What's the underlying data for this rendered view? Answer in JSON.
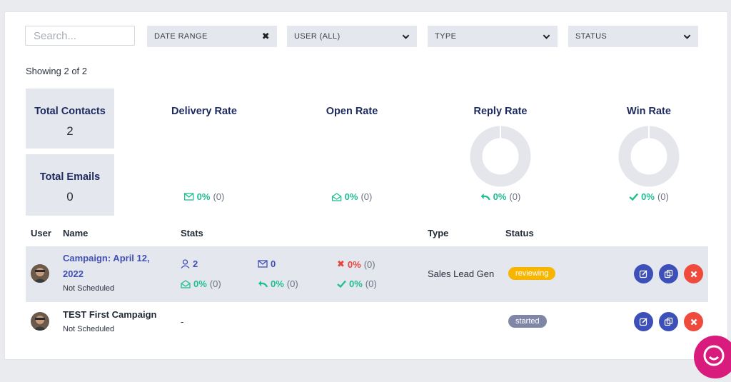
{
  "filters": {
    "search_placeholder": "Search...",
    "date_range": "DATE RANGE",
    "user": "USER (ALL)",
    "type": "TYPE",
    "status": "STATUS"
  },
  "showing": "Showing 2 of 2",
  "summary": {
    "total_contacts": {
      "label": "Total Contacts",
      "value": "2"
    },
    "total_emails": {
      "label": "Total Emails",
      "value": "0"
    },
    "delivery": {
      "label": "Delivery Rate",
      "pct": "0%",
      "count": "(0)"
    },
    "open": {
      "label": "Open Rate",
      "pct": "0%",
      "count": "(0)"
    },
    "reply": {
      "label": "Reply Rate",
      "pct": "0%",
      "count": "(0)"
    },
    "win": {
      "label": "Win Rate",
      "pct": "0%",
      "count": "(0)"
    }
  },
  "table": {
    "headers": {
      "user": "User",
      "name": "Name",
      "stats": "Stats",
      "type": "Type",
      "status": "Status"
    },
    "rows": [
      {
        "name_line1": "Campaign: April 12,",
        "name_line2": "2022",
        "schedule": "Not Scheduled",
        "contacts": "2",
        "emails": "0",
        "bounce_pct": "0%",
        "bounce_count": "(0)",
        "open_pct": "0%",
        "open_count": "(0)",
        "reply_pct": "0%",
        "reply_count": "(0)",
        "win_pct": "0%",
        "win_count": "(0)",
        "type": "Sales Lead Gen",
        "status": "reviewing"
      },
      {
        "name": "TEST First Campaign",
        "schedule": "Not Scheduled",
        "stats": "-",
        "status": "started"
      }
    ]
  },
  "colors": {
    "accent": "#4150b4",
    "green": "#1fbf8f",
    "red": "#e6443a",
    "reviewing": "#f7b500",
    "started": "#7f86a6",
    "chat": "#d81b7c"
  }
}
